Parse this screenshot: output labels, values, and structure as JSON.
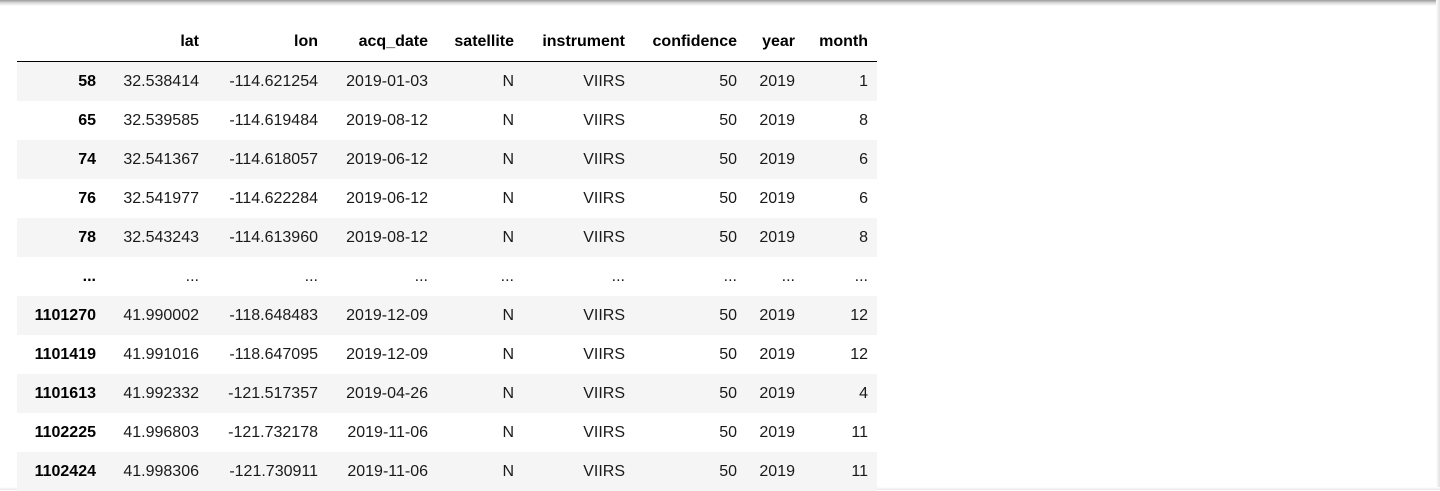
{
  "table": {
    "index_header": "",
    "columns": [
      "lat",
      "lon",
      "acq_date",
      "satellite",
      "instrument",
      "confidence",
      "year",
      "month"
    ],
    "rows": [
      {
        "index": "58",
        "cells": [
          "32.538414",
          "-114.621254",
          "2019-01-03",
          "N",
          "VIIRS",
          "50",
          "2019",
          "1"
        ]
      },
      {
        "index": "65",
        "cells": [
          "32.539585",
          "-114.619484",
          "2019-08-12",
          "N",
          "VIIRS",
          "50",
          "2019",
          "8"
        ]
      },
      {
        "index": "74",
        "cells": [
          "32.541367",
          "-114.618057",
          "2019-06-12",
          "N",
          "VIIRS",
          "50",
          "2019",
          "6"
        ]
      },
      {
        "index": "76",
        "cells": [
          "32.541977",
          "-114.622284",
          "2019-06-12",
          "N",
          "VIIRS",
          "50",
          "2019",
          "6"
        ]
      },
      {
        "index": "78",
        "cells": [
          "32.543243",
          "-114.613960",
          "2019-08-12",
          "N",
          "VIIRS",
          "50",
          "2019",
          "8"
        ]
      },
      {
        "index": "...",
        "cells": [
          "...",
          "...",
          "...",
          "...",
          "...",
          "...",
          "...",
          "..."
        ]
      },
      {
        "index": "1101270",
        "cells": [
          "41.990002",
          "-118.648483",
          "2019-12-09",
          "N",
          "VIIRS",
          "50",
          "2019",
          "12"
        ]
      },
      {
        "index": "1101419",
        "cells": [
          "41.991016",
          "-118.647095",
          "2019-12-09",
          "N",
          "VIIRS",
          "50",
          "2019",
          "12"
        ]
      },
      {
        "index": "1101613",
        "cells": [
          "41.992332",
          "-121.517357",
          "2019-04-26",
          "N",
          "VIIRS",
          "50",
          "2019",
          "4"
        ]
      },
      {
        "index": "1102225",
        "cells": [
          "41.996803",
          "-121.732178",
          "2019-11-06",
          "N",
          "VIIRS",
          "50",
          "2019",
          "11"
        ]
      },
      {
        "index": "1102424",
        "cells": [
          "41.998306",
          "-121.730911",
          "2019-11-06",
          "N",
          "VIIRS",
          "50",
          "2019",
          "11"
        ]
      }
    ]
  },
  "colors": {
    "row_stripe": "#f5f5f5",
    "header_rule": "#000000"
  }
}
